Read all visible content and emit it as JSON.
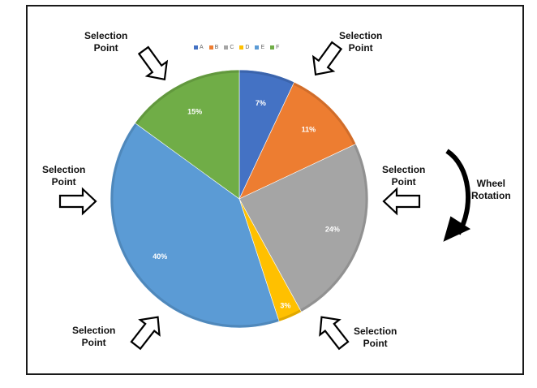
{
  "chart_data": {
    "type": "pie",
    "categories": [
      "A",
      "B",
      "C",
      "D",
      "E",
      "F"
    ],
    "values": [
      7,
      11,
      24,
      3,
      40,
      15
    ],
    "data_labels": [
      "7%",
      "11%",
      "24%",
      "3%",
      "40%",
      "15%"
    ],
    "colors": [
      "#4472c4",
      "#ed7d31",
      "#a5a5a5",
      "#ffc000",
      "#5b9bd5",
      "#70ad47"
    ],
    "legend_placement": "top",
    "start": "12 o'clock",
    "direction": "clockwise"
  },
  "annotations": {
    "selection_top_left": [
      "Selection",
      "Point"
    ],
    "selection_top_right": [
      "Selection",
      "Point"
    ],
    "selection_left": [
      "Selection",
      "Point"
    ],
    "selection_right": [
      "Selection",
      "Point"
    ],
    "selection_bottom_left": [
      "Selection",
      "Point"
    ],
    "selection_bottom_right": [
      "Selection",
      "Point"
    ],
    "wheel_rotation": [
      "Wheel",
      "Rotation"
    ]
  }
}
